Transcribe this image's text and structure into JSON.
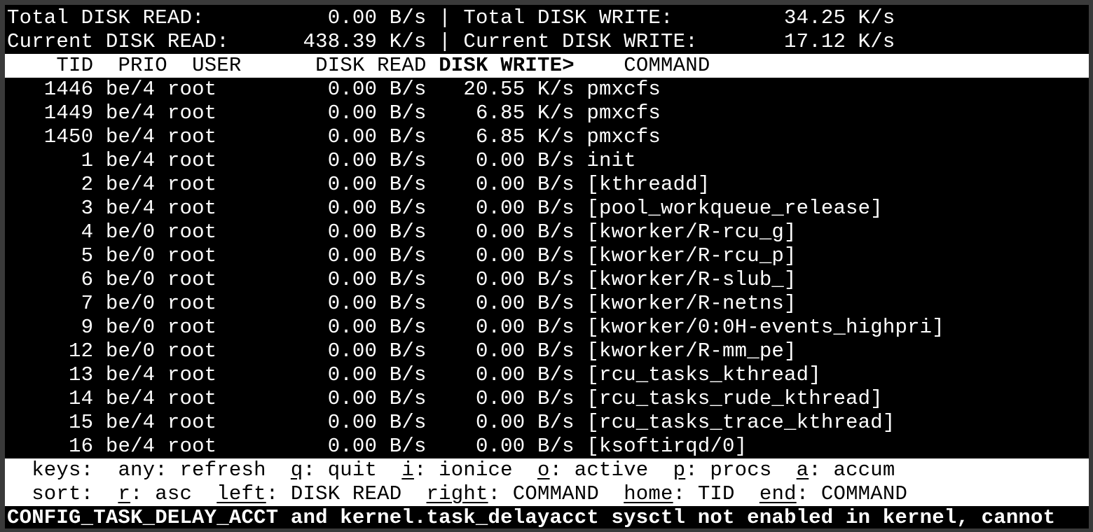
{
  "summary": {
    "total_read_label": "Total DISK READ:",
    "total_read": "0.00 B/s",
    "total_write_label": "Total DISK WRITE:",
    "total_write": "34.25 K/s",
    "current_read_label": "Current DISK READ:",
    "current_read": "438.39 K/s",
    "current_write_label": "Current DISK WRITE:",
    "current_write": "17.12 K/s",
    "separator": "|"
  },
  "columns": {
    "tid": "TID",
    "prio": "PRIO",
    "user": "USER",
    "disk_read": "DISK READ",
    "disk_write": "DISK WRITE>",
    "command": "COMMAND",
    "sorted_column": "disk_write"
  },
  "rows": [
    {
      "tid": "1446",
      "prio": "be/4",
      "user": "root",
      "read": "0.00 B/s",
      "write": "20.55 K/s",
      "command": "pmxcfs"
    },
    {
      "tid": "1449",
      "prio": "be/4",
      "user": "root",
      "read": "0.00 B/s",
      "write": "6.85 K/s",
      "command": "pmxcfs"
    },
    {
      "tid": "1450",
      "prio": "be/4",
      "user": "root",
      "read": "0.00 B/s",
      "write": "6.85 K/s",
      "command": "pmxcfs"
    },
    {
      "tid": "1",
      "prio": "be/4",
      "user": "root",
      "read": "0.00 B/s",
      "write": "0.00 B/s",
      "command": "init"
    },
    {
      "tid": "2",
      "prio": "be/4",
      "user": "root",
      "read": "0.00 B/s",
      "write": "0.00 B/s",
      "command": "[kthreadd]"
    },
    {
      "tid": "3",
      "prio": "be/4",
      "user": "root",
      "read": "0.00 B/s",
      "write": "0.00 B/s",
      "command": "[pool_workqueue_release]"
    },
    {
      "tid": "4",
      "prio": "be/0",
      "user": "root",
      "read": "0.00 B/s",
      "write": "0.00 B/s",
      "command": "[kworker/R-rcu_g]"
    },
    {
      "tid": "5",
      "prio": "be/0",
      "user": "root",
      "read": "0.00 B/s",
      "write": "0.00 B/s",
      "command": "[kworker/R-rcu_p]"
    },
    {
      "tid": "6",
      "prio": "be/0",
      "user": "root",
      "read": "0.00 B/s",
      "write": "0.00 B/s",
      "command": "[kworker/R-slub_]"
    },
    {
      "tid": "7",
      "prio": "be/0",
      "user": "root",
      "read": "0.00 B/s",
      "write": "0.00 B/s",
      "command": "[kworker/R-netns]"
    },
    {
      "tid": "9",
      "prio": "be/0",
      "user": "root",
      "read": "0.00 B/s",
      "write": "0.00 B/s",
      "command": "[kworker/0:0H-events_highpri]"
    },
    {
      "tid": "12",
      "prio": "be/0",
      "user": "root",
      "read": "0.00 B/s",
      "write": "0.00 B/s",
      "command": "[kworker/R-mm_pe]"
    },
    {
      "tid": "13",
      "prio": "be/4",
      "user": "root",
      "read": "0.00 B/s",
      "write": "0.00 B/s",
      "command": "[rcu_tasks_kthread]"
    },
    {
      "tid": "14",
      "prio": "be/4",
      "user": "root",
      "read": "0.00 B/s",
      "write": "0.00 B/s",
      "command": "[rcu_tasks_rude_kthread]"
    },
    {
      "tid": "15",
      "prio": "be/4",
      "user": "root",
      "read": "0.00 B/s",
      "write": "0.00 B/s",
      "command": "[rcu_tasks_trace_kthread]"
    },
    {
      "tid": "16",
      "prio": "be/4",
      "user": "root",
      "read": "0.00 B/s",
      "write": "0.00 B/s",
      "command": "[ksoftirqd/0]"
    }
  ],
  "footer": {
    "keys_label": "keys:",
    "keys": [
      {
        "key": "any",
        "label": "refresh",
        "underline": false
      },
      {
        "key": "q",
        "label": "quit",
        "underline": true
      },
      {
        "key": "i",
        "label": "ionice",
        "underline": true
      },
      {
        "key": "o",
        "label": "active",
        "underline": true
      },
      {
        "key": "p",
        "label": "procs",
        "underline": true
      },
      {
        "key": "a",
        "label": "accum",
        "underline": true
      }
    ],
    "sort_label": "sort:",
    "sort": [
      {
        "key": "r",
        "label": "asc",
        "underline": true
      },
      {
        "key": "left",
        "label": "DISK READ",
        "underline": true
      },
      {
        "key": "right",
        "label": "COMMAND",
        "underline": true
      },
      {
        "key": "home",
        "label": "TID",
        "underline": true
      },
      {
        "key": "end",
        "label": "COMMAND",
        "underline": true
      }
    ]
  },
  "status_message": "CONFIG_TASK_DELAY_ACCT and kernel.task_delayacct sysctl not enabled in kernel, cannot",
  "colors": {
    "background": "#000000",
    "foreground": "#ffffff",
    "inverse_bg": "#ffffff",
    "frame": "#3a3a3a"
  }
}
